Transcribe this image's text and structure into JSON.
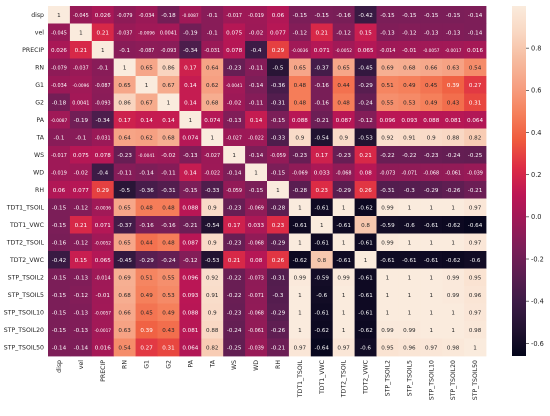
{
  "chart_data": {
    "type": "heatmap",
    "title": "",
    "labels": [
      "disp",
      "vel",
      "PRECIP",
      "RN",
      "G1",
      "G2",
      "PA",
      "TA",
      "WS",
      "WD",
      "RH",
      "TDT1_TSOIL",
      "TDT1_VWC",
      "TDT2_TSOIL",
      "TDT2_VWC",
      "STP_TSOIL2",
      "STP_TSOIL5",
      "STP_TSOIL10",
      "STP_TSOIL20",
      "STP_TSOIL50"
    ],
    "values": [
      [
        "1",
        "-0.045",
        "0.026",
        "-0.079",
        "-0.034",
        "-0.18",
        "-0.0087",
        "-0.1",
        "-0.017",
        "-0.019",
        "0.06",
        "-0.15",
        "-0.15",
        "-0.16",
        "-0.42",
        "-0.15",
        "-0.15",
        "-0.15",
        "-0.15",
        "-0.14"
      ],
      [
        "-0.045",
        "1",
        "0.21",
        "-0.037",
        "-0.0096",
        "0.0041",
        "-0.19",
        "-0.1",
        "0.075",
        "-0.02",
        "0.077",
        "-0.12",
        "0.21",
        "-0.12",
        "0.15",
        "-0.13",
        "-0.12",
        "-0.13",
        "-0.13",
        "-0.14"
      ],
      [
        "0.026",
        "0.21",
        "1",
        "-0.1",
        "-0.087",
        "-0.093",
        "-0.34",
        "-0.031",
        "0.078",
        "-0.4",
        "0.29",
        "-0.0036",
        "0.071",
        "-0.0052",
        "0.065",
        "-0.014",
        "-0.01",
        "-0.0057",
        "-0.0017",
        "0.016"
      ],
      [
        "-0.079",
        "-0.037",
        "-0.1",
        "1",
        "0.65",
        "0.86",
        "0.17",
        "0.64",
        "-0.23",
        "-0.11",
        "-0.5",
        "0.65",
        "-0.37",
        "0.65",
        "-0.45",
        "0.69",
        "0.68",
        "0.66",
        "0.63",
        "0.54"
      ],
      [
        "-0.034",
        "-0.0096",
        "-0.087",
        "0.65",
        "1",
        "0.67",
        "0.14",
        "0.62",
        "-0.0041",
        "-0.14",
        "-0.36",
        "0.48",
        "-0.16",
        "0.44",
        "-0.29",
        "0.51",
        "0.49",
        "0.45",
        "0.39",
        "0.27"
      ],
      [
        "-0.18",
        "0.0041",
        "-0.093",
        "0.86",
        "0.67",
        "1",
        "0.14",
        "0.68",
        "-0.02",
        "-0.11",
        "-0.31",
        "0.48",
        "-0.16",
        "0.48",
        "-0.24",
        "0.55",
        "0.53",
        "0.49",
        "0.43",
        "0.31"
      ],
      [
        "-0.0087",
        "-0.19",
        "-0.34",
        "0.17",
        "0.14",
        "0.14",
        "1",
        "0.074",
        "-0.13",
        "0.14",
        "-0.15",
        "0.088",
        "-0.21",
        "0.087",
        "-0.12",
        "0.096",
        "0.093",
        "0.088",
        "0.081",
        "0.064"
      ],
      [
        "-0.1",
        "-0.1",
        "-0.031",
        "0.64",
        "0.62",
        "0.68",
        "0.074",
        "1",
        "-0.027",
        "-0.022",
        "-0.33",
        "0.9",
        "-0.54",
        "0.9",
        "-0.53",
        "0.92",
        "0.91",
        "0.9",
        "0.88",
        "0.82"
      ],
      [
        "-0.017",
        "0.075",
        "0.078",
        "-0.23",
        "-0.0041",
        "-0.02",
        "-0.13",
        "-0.027",
        "1",
        "-0.14",
        "-0.059",
        "-0.23",
        "0.17",
        "-0.23",
        "0.21",
        "-0.22",
        "-0.22",
        "-0.23",
        "-0.24",
        "-0.25"
      ],
      [
        "-0.019",
        "-0.02",
        "-0.4",
        "-0.11",
        "-0.14",
        "-0.11",
        "0.14",
        "-0.022",
        "-0.14",
        "1",
        "-0.15",
        "-0.069",
        "0.033",
        "-0.068",
        "0.08",
        "-0.073",
        "-0.071",
        "-0.068",
        "-0.061",
        "-0.039"
      ],
      [
        "0.06",
        "0.077",
        "0.29",
        "-0.5",
        "-0.36",
        "-0.31",
        "-0.15",
        "-0.33",
        "-0.059",
        "-0.15",
        "1",
        "-0.28",
        "0.23",
        "-0.29",
        "0.26",
        "-0.31",
        "-0.3",
        "-0.29",
        "-0.26",
        "-0.21"
      ],
      [
        "-0.15",
        "-0.12",
        "-0.0036",
        "0.65",
        "0.48",
        "0.48",
        "0.088",
        "0.9",
        "-0.23",
        "-0.069",
        "-0.28",
        "1",
        "-0.61",
        "1",
        "-0.62",
        "0.99",
        "1",
        "1",
        "1",
        "0.97"
      ],
      [
        "-0.15",
        "0.21",
        "0.071",
        "-0.37",
        "-0.16",
        "-0.16",
        "-0.21",
        "-0.54",
        "0.17",
        "0.033",
        "0.23",
        "-0.61",
        "1",
        "-0.61",
        "0.8",
        "-0.59",
        "-0.6",
        "-0.61",
        "-0.62",
        "-0.64"
      ],
      [
        "-0.16",
        "-0.12",
        "-0.0052",
        "0.65",
        "0.44",
        "0.48",
        "0.087",
        "0.9",
        "-0.23",
        "-0.068",
        "-0.29",
        "1",
        "-0.61",
        "1",
        "-0.61",
        "0.99",
        "1",
        "1",
        "1",
        "0.97"
      ],
      [
        "-0.42",
        "0.15",
        "0.065",
        "-0.45",
        "-0.29",
        "-0.24",
        "-0.12",
        "-0.53",
        "0.21",
        "0.08",
        "0.26",
        "-0.62",
        "0.8",
        "-0.61",
        "1",
        "-0.61",
        "-0.61",
        "-0.61",
        "-0.62",
        "-0.6"
      ],
      [
        "-0.15",
        "-0.13",
        "-0.014",
        "0.69",
        "0.51",
        "0.55",
        "0.096",
        "0.92",
        "-0.22",
        "-0.073",
        "-0.31",
        "0.99",
        "-0.59",
        "0.99",
        "-0.61",
        "1",
        "1",
        "1",
        "0.99",
        "0.95"
      ],
      [
        "-0.15",
        "-0.12",
        "-0.01",
        "0.68",
        "0.49",
        "0.53",
        "0.093",
        "0.91",
        "-0.22",
        "-0.071",
        "-0.3",
        "1",
        "-0.6",
        "1",
        "-0.61",
        "1",
        "1",
        "1",
        "0.99",
        "0.96"
      ],
      [
        "-0.15",
        "-0.13",
        "-0.0057",
        "0.66",
        "0.45",
        "0.49",
        "0.088",
        "0.9",
        "-0.23",
        "-0.068",
        "-0.29",
        "1",
        "-0.61",
        "1",
        "-0.61",
        "1",
        "1",
        "1",
        "1",
        "0.97"
      ],
      [
        "-0.15",
        "-0.13",
        "-0.0017",
        "0.63",
        "0.39",
        "0.43",
        "0.081",
        "0.88",
        "-0.24",
        "-0.061",
        "-0.26",
        "1",
        "-0.62",
        "1",
        "-0.62",
        "0.99",
        "0.99",
        "1",
        "1",
        "0.98"
      ],
      [
        "-0.14",
        "-0.14",
        "0.016",
        "0.54",
        "0.27",
        "0.31",
        "0.064",
        "0.82",
        "-0.25",
        "-0.039",
        "-0.21",
        "0.97",
        "-0.64",
        "0.97",
        "-0.6",
        "0.95",
        "0.96",
        "0.97",
        "0.98",
        "1"
      ]
    ],
    "colorbar": {
      "min": -0.66,
      "max": 1.0,
      "ticks": [
        "-0.6",
        "-0.4",
        "-0.2",
        "0.0",
        "0.2",
        "0.4",
        "0.6",
        "0.8"
      ],
      "tick_values": [
        -0.6,
        -0.4,
        -0.2,
        0.0,
        0.2,
        0.4,
        0.6,
        0.8
      ]
    },
    "colormap": [
      "#03051a",
      "#221331",
      "#3c1b46",
      "#5b1e51",
      "#7b1e58",
      "#9d1957",
      "#bd1655",
      "#dd2c45",
      "#ef5a3d",
      "#f5805b",
      "#f69f81",
      "#f6bb9f",
      "#f9d7c2",
      "#faebdd"
    ]
  }
}
